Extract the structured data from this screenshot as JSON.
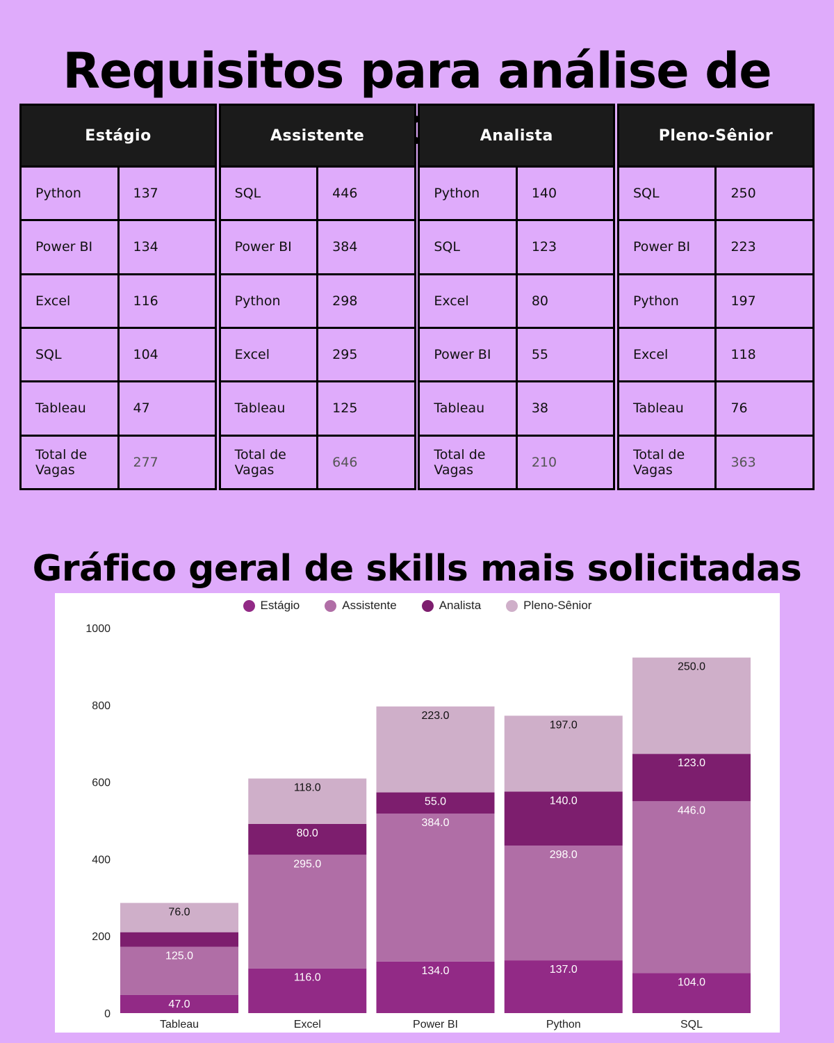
{
  "page": {
    "title": "Requisitos para análise de dados",
    "chart_title": "Gráfico geral de skills mais solicitadas"
  },
  "tables": [
    {
      "header": "Estágio",
      "rows": [
        {
          "skill": "Python",
          "count": "137"
        },
        {
          "skill": "Power BI",
          "count": "134"
        },
        {
          "skill": "Excel",
          "count": "116"
        },
        {
          "skill": "SQL",
          "count": "104"
        },
        {
          "skill": "Tableau",
          "count": "47"
        },
        {
          "skill": "Total de Vagas",
          "count": "277"
        }
      ]
    },
    {
      "header": "Assistente",
      "rows": [
        {
          "skill": "SQL",
          "count": "446"
        },
        {
          "skill": "Power BI",
          "count": "384"
        },
        {
          "skill": "Python",
          "count": "298"
        },
        {
          "skill": "Excel",
          "count": "295"
        },
        {
          "skill": "Tableau",
          "count": "125"
        },
        {
          "skill": "Total de Vagas",
          "count": "646"
        }
      ]
    },
    {
      "header": "Analista",
      "rows": [
        {
          "skill": "Python",
          "count": "140"
        },
        {
          "skill": "SQL",
          "count": "123"
        },
        {
          "skill": "Excel",
          "count": "80"
        },
        {
          "skill": "Power BI",
          "count": "55"
        },
        {
          "skill": "Tableau",
          "count": "38"
        },
        {
          "skill": "Total de Vagas",
          "count": "210"
        }
      ]
    },
    {
      "header": "Pleno-Sênior",
      "rows": [
        {
          "skill": "SQL",
          "count": "250"
        },
        {
          "skill": "Power BI",
          "count": "223"
        },
        {
          "skill": "Python",
          "count": "197"
        },
        {
          "skill": "Excel",
          "count": "118"
        },
        {
          "skill": "Tableau",
          "count": "76"
        },
        {
          "skill": "Total de Vagas",
          "count": "363"
        }
      ]
    }
  ],
  "chart_data": {
    "type": "bar",
    "stacked": true,
    "title": "Gráfico geral de skills mais solicitadas",
    "xlabel": "",
    "ylabel": "",
    "categories": [
      "Tableau",
      "Excel",
      "Power BI",
      "Python",
      "SQL"
    ],
    "series": [
      {
        "name": "Estágio",
        "color": "#922a86",
        "label_color": "#ffffff",
        "values": [
          47,
          116,
          134,
          137,
          104
        ],
        "labels": [
          "47.0",
          "116.0",
          "134.0",
          "137.0",
          "104.0"
        ]
      },
      {
        "name": "Assistente",
        "color": "#b06ea6",
        "label_color": "#ffffff",
        "values": [
          125,
          295,
          384,
          298,
          446
        ],
        "labels": [
          "125.0",
          "295.0",
          "384.0",
          "298.0",
          "446.0"
        ]
      },
      {
        "name": "Analista",
        "color": "#7d1e6e",
        "label_color": "#ffffff",
        "values": [
          38,
          80,
          55,
          140,
          123
        ],
        "labels": [
          "",
          "80.0",
          "55.0",
          "140.0",
          "123.0"
        ]
      },
      {
        "name": "Pleno-Sênior",
        "color": "#cfafc9",
        "label_color": "#111111",
        "values": [
          76,
          118,
          223,
          197,
          250
        ],
        "labels": [
          "76.0",
          "118.0",
          "223.0",
          "197.0",
          "250.0"
        ]
      }
    ],
    "ylim": [
      0,
      1000
    ],
    "yticks": [
      "0",
      "200",
      "400",
      "600",
      "800",
      "1000"
    ],
    "grid": false,
    "legend": "top-center"
  }
}
